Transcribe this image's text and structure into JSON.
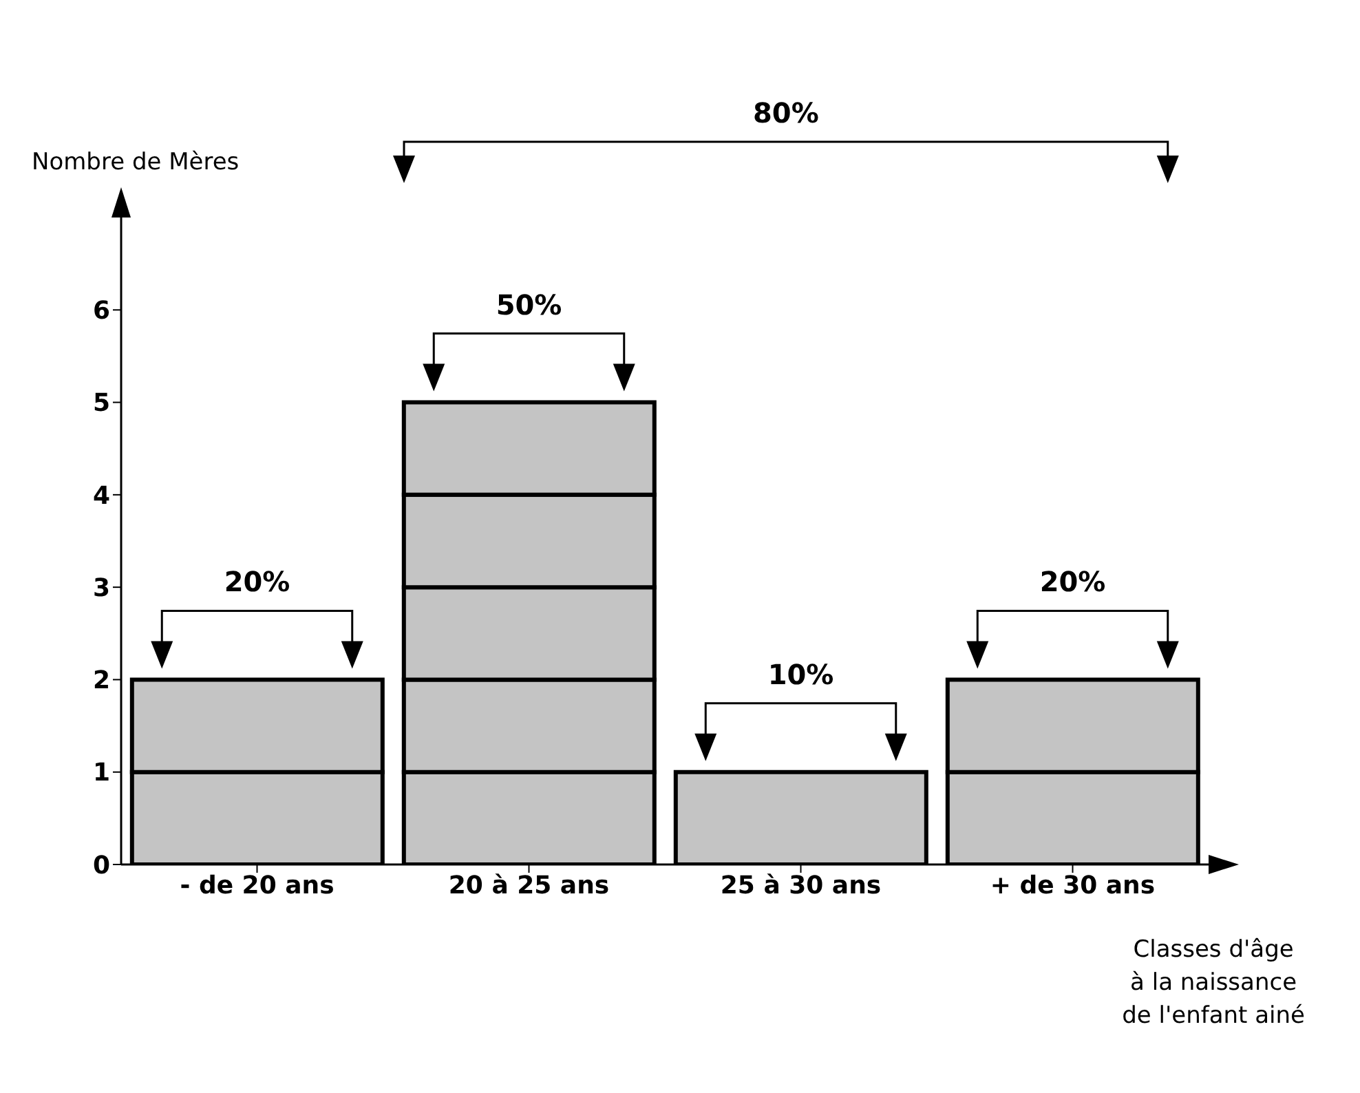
{
  "chart_data": {
    "type": "bar",
    "stacked": true,
    "ylabel": "Nombre de Mères",
    "xlabel": "Classes d'âge\nà la naissance\nde l'enfant ainé",
    "categories": [
      "- de 20 ans",
      "20 à 25 ans",
      "25 à 30 ans",
      "+ de 30 ans"
    ],
    "series": [
      {
        "color": "#c4c4c4",
        "values": [
          1,
          1,
          1,
          1
        ]
      },
      {
        "color": "#c4c4c4",
        "values": [
          1,
          1,
          null,
          1
        ]
      },
      {
        "color": "#c4c4c4",
        "values": [
          null,
          1,
          null,
          null
        ]
      },
      {
        "color": "#c4c4c4",
        "values": [
          null,
          1,
          null,
          null
        ]
      },
      {
        "color": "#c4c4c4",
        "values": [
          null,
          1,
          null,
          null
        ]
      }
    ],
    "ylim": [
      0,
      7
    ],
    "yticks": [
      0,
      1,
      2,
      3,
      4,
      5,
      6
    ],
    "annotations": [
      {
        "text": "20%",
        "x": "- de 20 ans",
        "y": 2
      },
      {
        "text": "50%",
        "x": "20 à 25 ans",
        "y": 5
      },
      {
        "text": "10%",
        "x": "25 à 30 ans",
        "y": 1
      },
      {
        "text": "20%",
        "x": "+ de 30 ans",
        "y": 2
      },
      "80%"
    ]
  }
}
